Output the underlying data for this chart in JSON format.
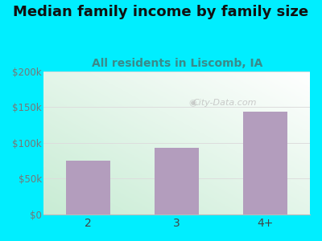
{
  "title": "Median family income by family size",
  "subtitle": "All residents in Liscomb, IA",
  "categories": [
    "2",
    "3",
    "4+"
  ],
  "values": [
    75000,
    93000,
    143000
  ],
  "bar_color": "#b39dbd",
  "background_outer": "#00eeff",
  "ylim": [
    0,
    200000
  ],
  "yticks": [
    0,
    50000,
    100000,
    150000,
    200000
  ],
  "ytick_labels": [
    "$0",
    "$50k",
    "$100k",
    "$150k",
    "$200k"
  ],
  "title_fontsize": 13,
  "subtitle_fontsize": 10,
  "title_color": "#111111",
  "subtitle_color": "#3a8a8a",
  "watermark": "City-Data.com",
  "tick_color": "#777777",
  "grid_color": "#dddddd",
  "plot_bg_left": "#c8ecd4",
  "plot_bg_right": "#eaf6f6"
}
